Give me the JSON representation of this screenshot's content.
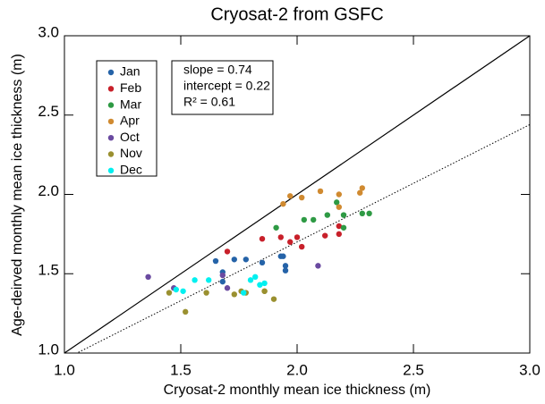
{
  "chart_data": {
    "type": "scatter",
    "title": "Cryosat-2 from GSFC",
    "x_label": "Cryosat-2 monthly mean ice thickness (m)",
    "y_label": "Age-deirved monthly mean ice thickness (m)",
    "xlim": [
      1.0,
      3.0
    ],
    "ylim": [
      1.0,
      3.0
    ],
    "xticks": [
      {
        "value": 1.0,
        "label": "1.0"
      },
      {
        "value": 1.5,
        "label": "1.5"
      },
      {
        "value": 2.0,
        "label": "2.0"
      },
      {
        "value": 2.5,
        "label": "2.5"
      },
      {
        "value": 3.0,
        "label": "3.0"
      }
    ],
    "yticks": [
      {
        "value": 1.0,
        "label": "1.0"
      },
      {
        "value": 1.5,
        "label": "1.5"
      },
      {
        "value": 2.0,
        "label": "2.0"
      },
      {
        "value": 2.5,
        "label": "2.5"
      },
      {
        "value": 3.0,
        "label": "3.0"
      }
    ],
    "identity_line": true,
    "fit": [
      {
        "value": 0.74,
        "label": "slope = 0.74"
      },
      {
        "value": 0.22,
        "label": "intercept = 0.22"
      },
      {
        "value": 0.61,
        "label": "R² = 0.61"
      }
    ],
    "legend": "upper left",
    "series": [
      {
        "name": "Jan",
        "color": "#2563a8",
        "x": [
          1.65,
          1.68,
          1.68,
          1.73,
          1.78,
          1.85,
          1.93,
          1.94,
          1.95,
          1.95
        ],
        "y": [
          1.58,
          1.51,
          1.45,
          1.59,
          1.59,
          1.57,
          1.61,
          1.61,
          1.55,
          1.52
        ]
      },
      {
        "name": "Feb",
        "color": "#c8202a",
        "x": [
          1.7,
          1.85,
          1.93,
          1.97,
          2.0,
          2.02,
          2.12,
          2.18,
          2.18
        ],
        "y": [
          1.64,
          1.72,
          1.73,
          1.7,
          1.73,
          1.67,
          1.74,
          1.75,
          1.8
        ]
      },
      {
        "name": "Mar",
        "color": "#2e9a44",
        "x": [
          1.91,
          2.03,
          2.07,
          2.13,
          2.2,
          2.2,
          2.17,
          2.28,
          2.31
        ],
        "y": [
          1.79,
          1.84,
          1.84,
          1.87,
          1.87,
          1.79,
          1.95,
          1.88,
          1.88
        ]
      },
      {
        "name": "Apr",
        "color": "#d08a30",
        "x": [
          1.94,
          1.97,
          2.02,
          2.1,
          2.18,
          2.18,
          2.27,
          2.28
        ],
        "y": [
          1.94,
          1.99,
          1.98,
          2.02,
          2.0,
          1.92,
          2.01,
          2.04
        ]
      },
      {
        "name": "Oct",
        "color": "#6a4aa0",
        "x": [
          1.36,
          1.47,
          1.68,
          1.7,
          2.09
        ],
        "y": [
          1.48,
          1.41,
          1.49,
          1.41,
          1.55
        ]
      },
      {
        "name": "Nov",
        "color": "#9a9030",
        "x": [
          1.45,
          1.52,
          1.61,
          1.73,
          1.76,
          1.78,
          1.86,
          1.86,
          1.9
        ],
        "y": [
          1.38,
          1.26,
          1.38,
          1.37,
          1.39,
          1.38,
          1.39,
          1.39,
          1.34
        ]
      },
      {
        "name": "Dec",
        "color": "#00f0f0",
        "x": [
          1.48,
          1.51,
          1.56,
          1.62,
          1.77,
          1.8,
          1.82,
          1.84,
          1.86
        ],
        "y": [
          1.4,
          1.39,
          1.46,
          1.46,
          1.38,
          1.46,
          1.48,
          1.43,
          1.44
        ]
      }
    ]
  }
}
